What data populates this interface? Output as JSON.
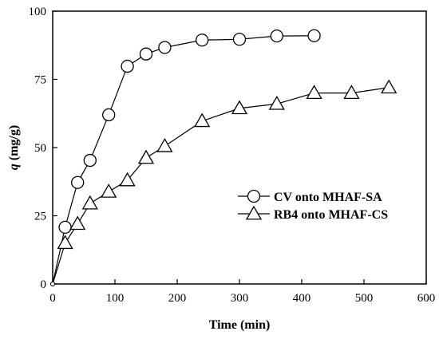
{
  "chart_data": {
    "type": "line",
    "xlabel": "Time (min)",
    "ylabel_symbol": "q",
    "ylabel_unit": "(mg/g)",
    "xlim": [
      0,
      600
    ],
    "ylim": [
      0,
      100
    ],
    "xticks": [
      0,
      100,
      200,
      300,
      400,
      500,
      600
    ],
    "yticks": [
      0,
      25,
      50,
      75,
      100
    ],
    "grid": false,
    "legend_placement": "center-right",
    "series": [
      {
        "name": "CV onto MHAF-SA",
        "marker": "circle",
        "x": [
          0,
          20,
          40,
          60,
          90,
          120,
          150,
          180,
          240,
          300,
          360,
          420
        ],
        "y": [
          0,
          20.8,
          37.2,
          45.3,
          62.0,
          79.8,
          84.3,
          86.7,
          89.4,
          89.7,
          90.9,
          91.0
        ]
      },
      {
        "name": "RB4 onto MHAF-CS",
        "marker": "triangle",
        "x": [
          0,
          20,
          40,
          60,
          90,
          120,
          150,
          180,
          240,
          300,
          360,
          420,
          480,
          540
        ],
        "y": [
          0,
          15.0,
          22.0,
          29.5,
          33.8,
          38.0,
          46.2,
          50.5,
          59.7,
          64.4,
          66.0,
          70.0,
          70.0,
          72.0
        ]
      }
    ]
  },
  "colors": {
    "ink": "#000000",
    "background": "#ffffff"
  }
}
